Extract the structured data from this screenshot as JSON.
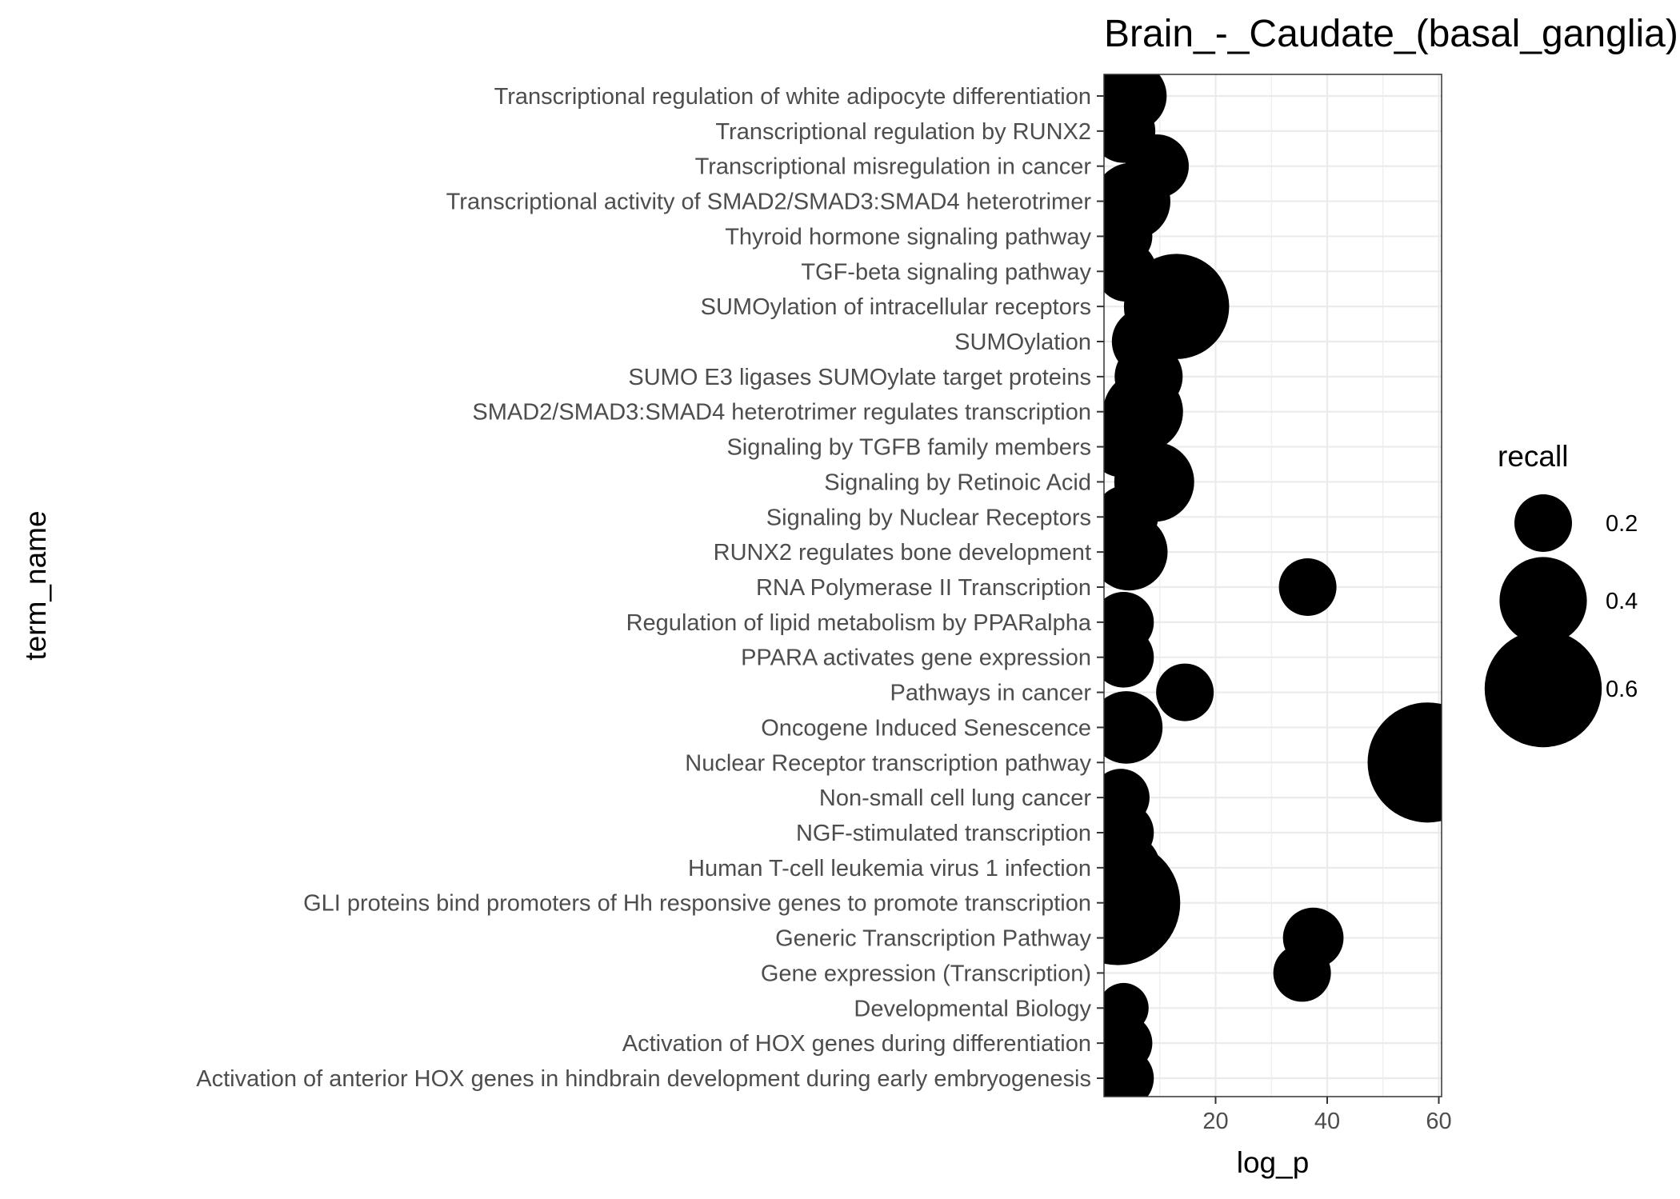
{
  "chart_data": {
    "type": "scatter",
    "title": "Brain_-_Caudate_(basal_ganglia)",
    "xlabel": "log_p",
    "ylabel": "term_name",
    "xlim": [
      0,
      60.5
    ],
    "xticks": [
      20,
      40,
      60
    ],
    "grid": true,
    "legend": {
      "title": "recall",
      "placement": "right",
      "entries": [
        {
          "label": "0.2",
          "value": 0.2
        },
        {
          "label": "0.4",
          "value": 0.4
        },
        {
          "label": "0.6",
          "value": 0.6
        }
      ]
    },
    "point_color": "#000000",
    "categories": [
      "Transcriptional regulation of white adipocyte differentiation",
      "Transcriptional regulation by RUNX2",
      "Transcriptional misregulation in cancer",
      "Transcriptional activity of SMAD2/SMAD3:SMAD4 heterotrimer",
      "Thyroid hormone signaling pathway",
      "TGF-beta signaling pathway",
      "SUMOylation of intracellular receptors",
      "SUMOylation",
      "SUMO E3 ligases SUMOylate target proteins",
      "SMAD2/SMAD3:SMAD4 heterotrimer regulates transcription",
      "Signaling by TGFB family members",
      "Signaling by Retinoic Acid",
      "Signaling by Nuclear Receptors",
      "RUNX2 regulates bone development",
      "RNA Polymerase II Transcription",
      "Regulation of lipid metabolism by PPARalpha",
      "PPARA activates gene expression",
      "Pathways in cancer",
      "Oncogene Induced Senescence",
      "Nuclear Receptor transcription pathway",
      "Non-small cell lung cancer",
      "NGF-stimulated transcription",
      "Human T-cell leukemia virus 1 infection",
      "GLI proteins bind promoters of Hh responsive genes to promote transcription",
      "Generic Transcription Pathway",
      "Gene expression (Transcription)",
      "Developmental Biology",
      "Activation of HOX genes during differentiation",
      "Activation of anterior HOX genes in hindbrain development during early embryogenesis"
    ],
    "x": [
      5.0,
      3.5,
      9.5,
      5.0,
      3.5,
      4.0,
      13.0,
      7.5,
      8.0,
      7.0,
      3.0,
      9.0,
      4.0,
      4.5,
      36.5,
      3.5,
      3.5,
      14.5,
      4.0,
      58.0,
      3.0,
      3.5,
      4.0,
      2.5,
      37.5,
      35.5,
      3.5,
      3.5,
      3.5
    ],
    "recall": [
      0.28,
      0.24,
      0.24,
      0.33,
      0.2,
      0.22,
      0.52,
      0.27,
      0.27,
      0.35,
      0.22,
      0.35,
      0.24,
      0.33,
      0.2,
      0.22,
      0.22,
      0.2,
      0.3,
      0.62,
      0.2,
      0.22,
      0.27,
      0.65,
      0.22,
      0.2,
      0.15,
      0.2,
      0.22
    ]
  }
}
